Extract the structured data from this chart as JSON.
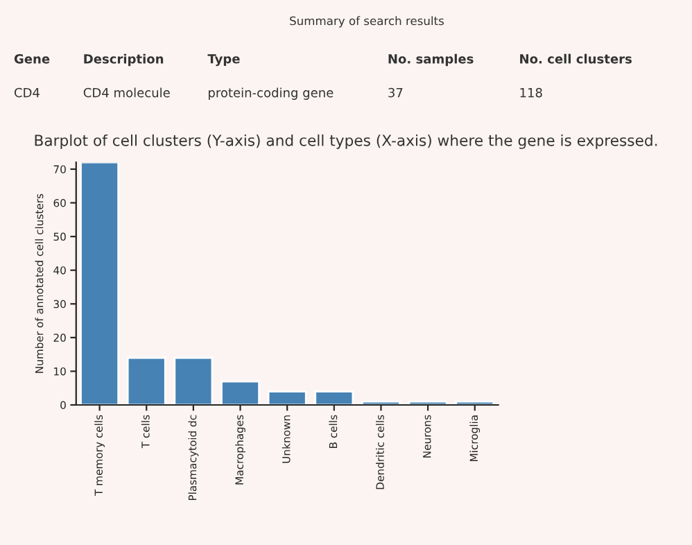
{
  "chart_data": {
    "type": "bar",
    "title": "Barplot of cell clusters (Y-axis) and cell types (X-axis) where the gene is expressed.",
    "ylabel": "Number of annotated cell clusters",
    "annotations": [
      "Summary of search results",
      "Gene",
      "Description",
      "Type",
      "No. samples",
      "No. cell clusters",
      "CD4",
      "CD4 molecule",
      "protein-coding gene",
      "37",
      "118"
    ],
    "categories": [
      "T memory cells",
      "T cells",
      "Plasmacytoid dc",
      "Macrophages",
      "Unknown",
      "B cells",
      "Dendritic cells",
      "Neurons",
      "Microglia"
    ],
    "values": [
      72,
      14,
      14,
      7,
      4,
      4,
      1,
      1,
      1
    ],
    "color": "#4682b4",
    "ylim": [
      0,
      72
    ],
    "yticks": [
      0,
      10,
      20,
      30,
      40,
      50,
      60,
      70
    ],
    "grid": false
  }
}
